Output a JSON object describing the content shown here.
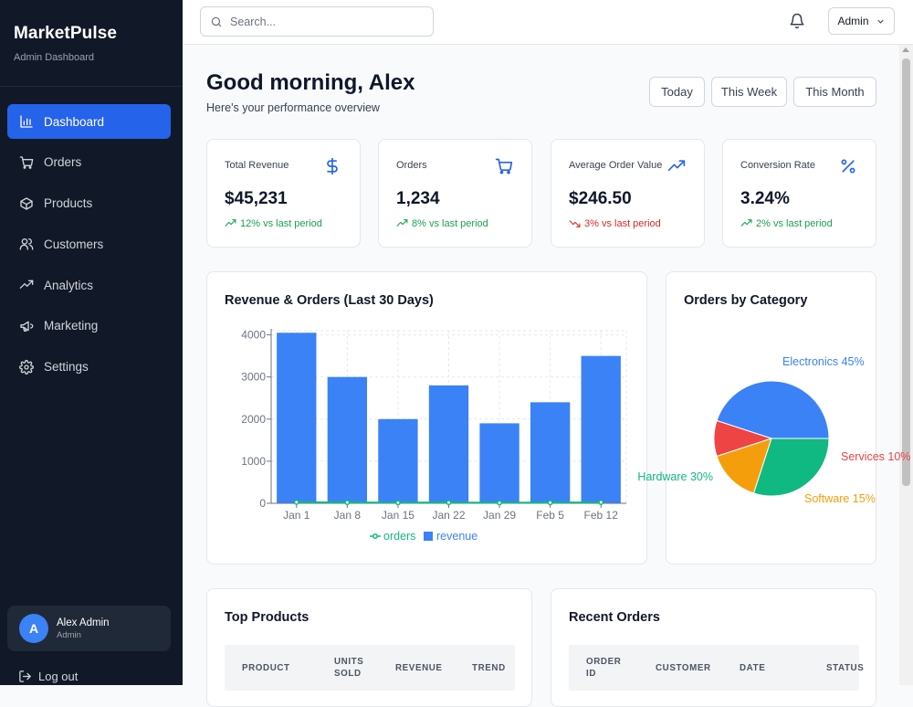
{
  "sidebar": {
    "brand": "MarketPulse",
    "subtitle": "Admin Dashboard",
    "items": [
      {
        "label": "Dashboard",
        "icon": "bar-chart-icon",
        "active": true
      },
      {
        "label": "Orders",
        "icon": "cart-icon"
      },
      {
        "label": "Products",
        "icon": "box-icon"
      },
      {
        "label": "Customers",
        "icon": "users-icon"
      },
      {
        "label": "Analytics",
        "icon": "trending-up-icon"
      },
      {
        "label": "Marketing",
        "icon": "megaphone-icon"
      },
      {
        "label": "Settings",
        "icon": "gear-icon"
      }
    ],
    "user": {
      "initial": "A",
      "name": "Alex Admin",
      "role": "Admin"
    },
    "logout": "Log out"
  },
  "topbar": {
    "search_placeholder": "Search...",
    "admin_label": "Admin"
  },
  "header": {
    "greeting": "Good morning, Alex",
    "subtitle": "Here's your performance overview",
    "periods": [
      "Today",
      "This Week",
      "This Month"
    ]
  },
  "stats": [
    {
      "label": "Total Revenue",
      "value": "$45,231",
      "trend": "12% vs last period",
      "direction": "up",
      "icon": "dollar-icon"
    },
    {
      "label": "Orders",
      "value": "1,234",
      "trend": "8% vs last period",
      "direction": "up",
      "icon": "cart-icon"
    },
    {
      "label": "Average Order Value",
      "value": "$246.50",
      "trend": "3% vs last period",
      "direction": "down",
      "icon": "trending-up-icon"
    },
    {
      "label": "Conversion Rate",
      "value": "3.24%",
      "trend": "2% vs last period",
      "direction": "up",
      "icon": "percent-icon"
    }
  ],
  "revenue_chart": {
    "title": "Revenue & Orders (Last 30 Days)"
  },
  "category_chart": {
    "title": "Orders by Category"
  },
  "top_products": {
    "title": "Top Products",
    "columns": [
      "PRODUCT",
      "UNITS SOLD",
      "REVENUE",
      "TREND"
    ]
  },
  "recent_orders": {
    "title": "Recent Orders",
    "columns": [
      "ORDER ID",
      "CUSTOMER",
      "DATE",
      "STATUS"
    ]
  },
  "colors": {
    "accent": "#2563eb",
    "bar": "#3b82f6",
    "orders_line": "#10b981",
    "up": "#16a34a",
    "down": "#dc2626"
  },
  "chart_data": [
    {
      "type": "bar",
      "title": "Revenue & Orders (Last 30 Days)",
      "categories": [
        "Jan 1",
        "Jan 8",
        "Jan 15",
        "Jan 22",
        "Jan 29",
        "Feb 5",
        "Feb 12"
      ],
      "series": [
        {
          "name": "revenue",
          "type": "bar",
          "values": [
            4050,
            3000,
            2000,
            2800,
            1900,
            2400,
            3500
          ],
          "color": "#3b82f6"
        },
        {
          "name": "orders",
          "type": "line",
          "values": [
            25,
            20,
            15,
            18,
            13,
            16,
            22
          ],
          "color": "#10b981"
        }
      ],
      "yticks": [
        0,
        1000,
        2000,
        3000,
        4000
      ],
      "ylim": [
        0,
        4100
      ],
      "grid": true,
      "legend": "bottom"
    },
    {
      "type": "pie",
      "title": "Orders by Category",
      "slices": [
        {
          "label": "Electronics 45%",
          "value": 45,
          "color": "#3b82f6"
        },
        {
          "label": "Services 10%",
          "value": 10,
          "color": "#ef4444"
        },
        {
          "label": "Software 15%",
          "value": 15,
          "color": "#f59e0b"
        },
        {
          "label": "Hardware 30%",
          "value": 30,
          "color": "#10b981"
        }
      ]
    }
  ]
}
